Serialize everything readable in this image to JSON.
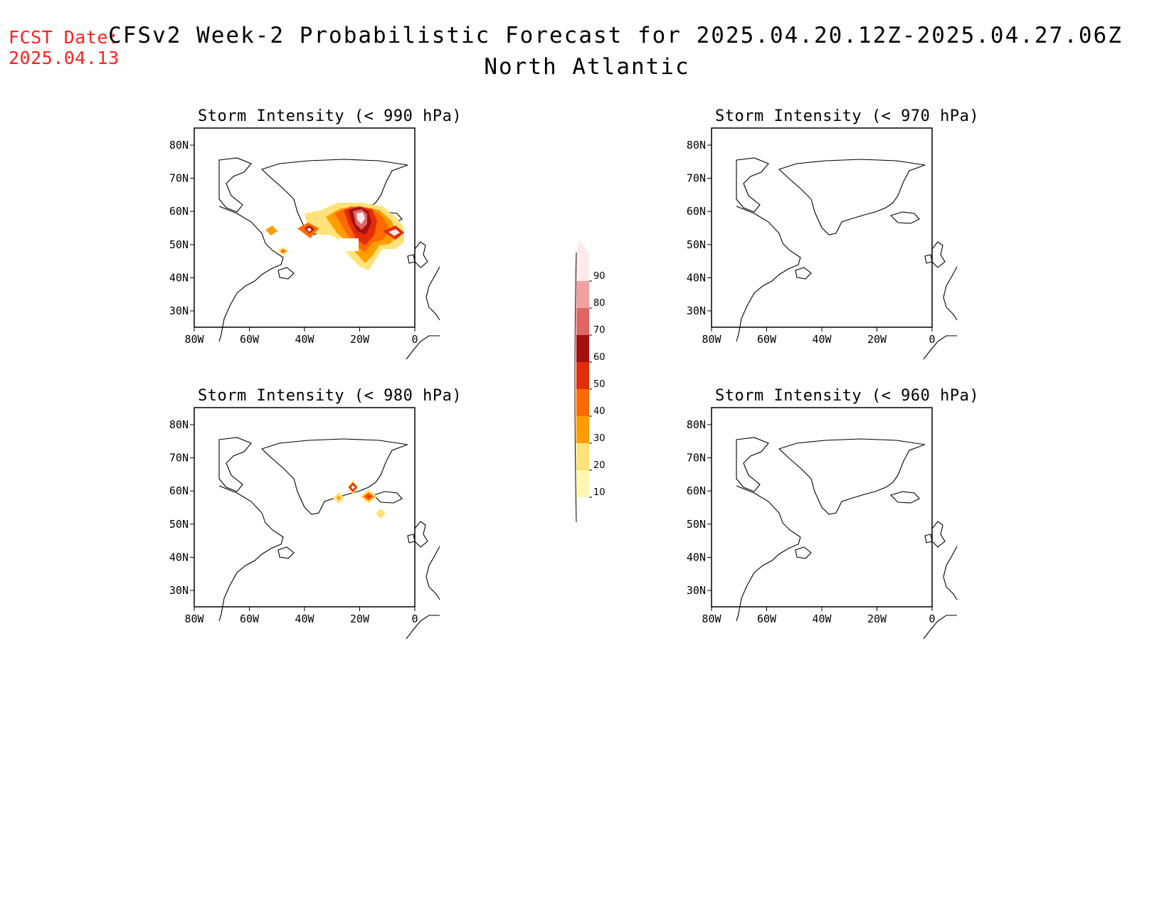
{
  "header": {
    "fcst_label": "FCST Date:",
    "fcst_date": "2025.04.13",
    "title_line1": "CFSv2 Week-2 Probabilistic Forecast for 2025.04.20.12Z-2025.04.27.06Z",
    "title_line2": "North Atlantic"
  },
  "axes": {
    "lon_labels": [
      "80W",
      "60W",
      "40W",
      "20W",
      "0"
    ],
    "lat_labels": [
      "80N",
      "70N",
      "60N",
      "50N",
      "40N",
      "30N"
    ]
  },
  "panels": [
    {
      "title": "Storm Intensity (< 990 hPa)",
      "has_data": true
    },
    {
      "title": "Storm Intensity (< 970 hPa)",
      "has_data": false
    },
    {
      "title": "Storm Intensity (< 980 hPa)",
      "has_data": true
    },
    {
      "title": "Storm Intensity (< 960 hPa)",
      "has_data": false
    }
  ],
  "colorbar": {
    "labels": [
      "90",
      "80",
      "70",
      "60",
      "50",
      "40",
      "30",
      "20",
      "10"
    ],
    "colors": [
      "#ffe9ea",
      "#f3a0a0",
      "#e06666",
      "#a50f0f",
      "#e32c0a",
      "#ff6a00",
      "#ff9d00",
      "#ffe27a",
      "#fff6b3"
    ]
  }
}
